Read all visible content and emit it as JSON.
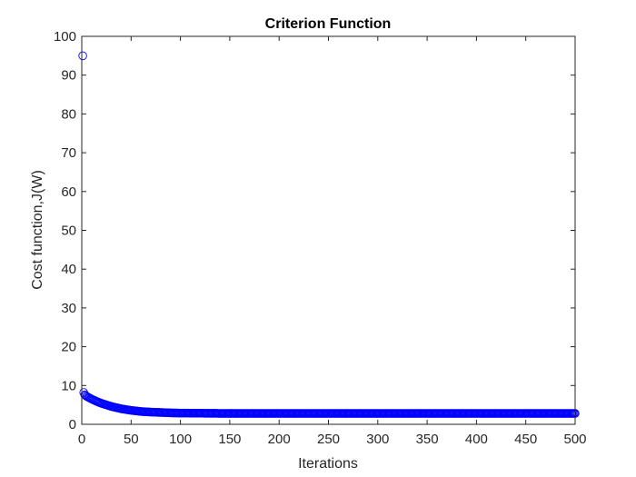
{
  "chart_data": {
    "type": "scatter",
    "title": "Criterion Function",
    "xlabel": "Iterations",
    "ylabel": "Cost function,J(W)",
    "xlim": [
      0,
      500
    ],
    "ylim": [
      0,
      100
    ],
    "xticks": [
      "0",
      "50",
      "100",
      "150",
      "200",
      "250",
      "300",
      "350",
      "400",
      "450",
      "500"
    ],
    "yticks": [
      "0",
      "10",
      "20",
      "30",
      "40",
      "50",
      "60",
      "70",
      "80",
      "90",
      "100"
    ],
    "grid": false,
    "marker": "circle-open",
    "series": [
      {
        "color": "#0000ff",
        "x_start": 1,
        "x_end": 500,
        "x_step": 1,
        "points": [
          [
            1,
            95
          ],
          [
            2,
            8.2
          ],
          [
            3,
            7.6
          ],
          [
            5,
            7.2
          ],
          [
            10,
            6.5
          ],
          [
            15,
            5.9
          ],
          [
            20,
            5.4
          ],
          [
            25,
            5.0
          ],
          [
            30,
            4.6
          ],
          [
            35,
            4.3
          ],
          [
            40,
            4.0
          ],
          [
            50,
            3.6
          ],
          [
            60,
            3.3
          ],
          [
            70,
            3.15
          ],
          [
            80,
            3.05
          ],
          [
            90,
            2.95
          ],
          [
            100,
            2.9
          ],
          [
            125,
            2.85
          ],
          [
            150,
            2.8
          ],
          [
            200,
            2.8
          ],
          [
            300,
            2.8
          ],
          [
            400,
            2.8
          ],
          [
            500,
            2.8
          ]
        ]
      }
    ]
  }
}
